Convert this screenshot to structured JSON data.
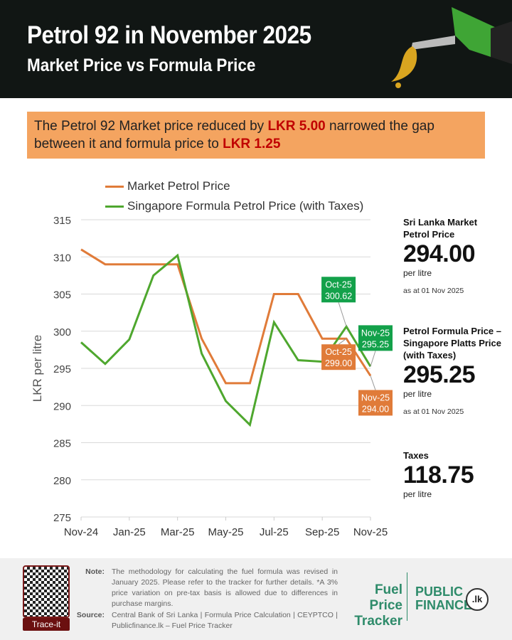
{
  "header": {
    "title": "Petrol 92 in November 2025",
    "subtitle": "Market Price vs Formula Price"
  },
  "callout": {
    "text1": "The Petrol 92 Market price reduced by ",
    "amount1": "LKR 5.00",
    "text2": " narrowed the gap between it and formula price to ",
    "amount2": "LKR 1.25"
  },
  "chart_data": {
    "type": "line",
    "ylabel": "LKR per litre",
    "ylim": [
      275,
      315
    ],
    "yticks": [
      "315",
      "310",
      "305",
      "300",
      "295",
      "290",
      "285",
      "280",
      "275"
    ],
    "x": [
      "Nov-24",
      "Dec-24",
      "Jan-25",
      "Feb-25",
      "Mar-25",
      "Apr-25",
      "May-25",
      "Jun-25",
      "Jul-25",
      "Aug-25",
      "Sep-25",
      "Oct-25",
      "Nov-25"
    ],
    "xticks": [
      "Nov-24",
      "Jan-25",
      "Mar-25",
      "May-25",
      "Jul-25",
      "Sep-25",
      "Nov-25"
    ],
    "grid": true,
    "legend_position": "top",
    "series": [
      {
        "name": "Market Petrol Price",
        "color": "#E07B39",
        "values": [
          311,
          309,
          309,
          309,
          309,
          299,
          293,
          293,
          305,
          305,
          299,
          299,
          294
        ]
      },
      {
        "name": "Singapore Formula Petrol Price (with Taxes)",
        "color": "#4EA72E",
        "values": [
          298.5,
          295.6,
          298.9,
          307.5,
          310.2,
          297,
          290.6,
          287.4,
          301.2,
          296.1,
          295.9,
          300.62,
          295.25
        ]
      }
    ],
    "annotations": [
      {
        "series": 1,
        "index": 11,
        "line1": "Oct-25",
        "line2": "300.62",
        "color": "#13A14A"
      },
      {
        "series": 1,
        "index": 12,
        "line1": "Nov-25",
        "line2": "295.25",
        "color": "#13A14A"
      },
      {
        "series": 0,
        "index": 11,
        "line1": "Oct-25",
        "line2": "299.00",
        "color": "#E07B39"
      },
      {
        "series": 0,
        "index": 12,
        "line1": "Nov-25",
        "line2": "294.00",
        "color": "#E07B39"
      }
    ]
  },
  "panel": {
    "market_label": "Sri Lanka  Market Petrol Price",
    "market_value": "294.00",
    "market_unit": "per litre",
    "market_date": "as at 01 Nov 2025",
    "formula_label": "Petrol Formula Price – Singapore Platts Price (with Taxes)",
    "formula_value": "295.25",
    "formula_unit": "per litre",
    "formula_date": "as at 01 Nov 2025",
    "taxes_label": "Taxes",
    "taxes_value": "118.75",
    "taxes_unit": "per litre"
  },
  "footer": {
    "qr_label": "Trace-it",
    "note_key": "Note:",
    "note": "The methodology for calculating the fuel formula was revised in January 2025. Please refer to the tracker for further details. *A 3% price variation on pre-tax basis is allowed due to differences in purchase margins.",
    "source_key": "Source:",
    "source": "Central Bank of Sri Lanka | Formula Price Calculation | CEYPTCO | Publicfinance.lk – Fuel Price Tracker",
    "logo1": "Fuel Price Tracker",
    "logo2_line1": "PUBLIC",
    "logo2_line2": "FINANCE",
    "logo2_badge": ".lk"
  }
}
